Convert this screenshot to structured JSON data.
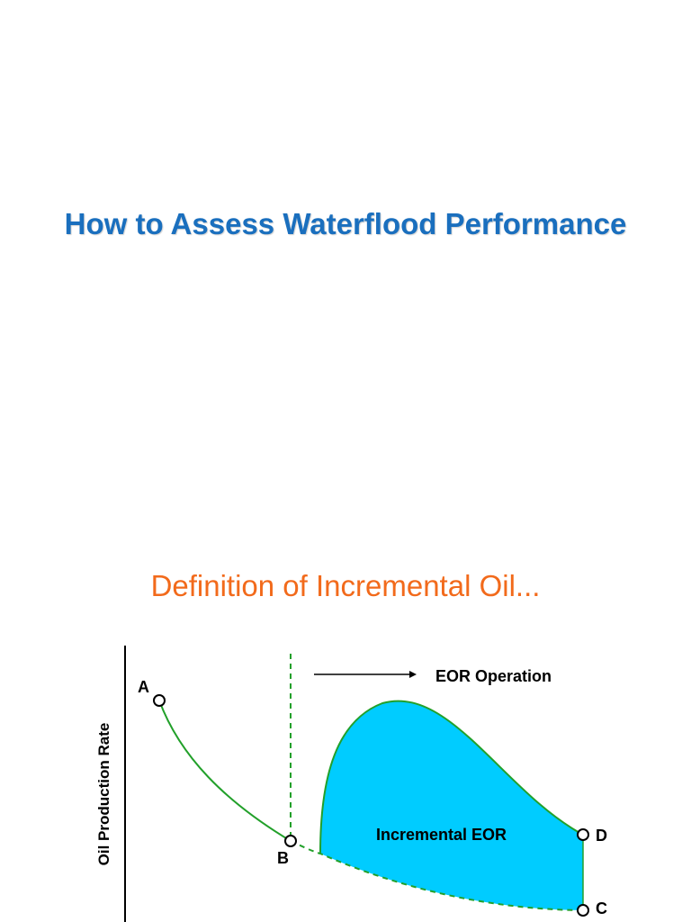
{
  "slide": {
    "title": "How to Assess Waterflood Performance",
    "section_title": "Definition of Incremental Oil...",
    "title_color": "#1a6fbe",
    "section_color": "#f26a1b"
  },
  "diagram": {
    "y_axis_label": "Oil Production Rate",
    "eor_label": "EOR Operation",
    "area_label": "Incremental EOR",
    "points": {
      "a": "A",
      "b": "B",
      "c": "C",
      "d": "D"
    },
    "curve_color": "#22a02a",
    "fill_color": "#00ccff"
  }
}
